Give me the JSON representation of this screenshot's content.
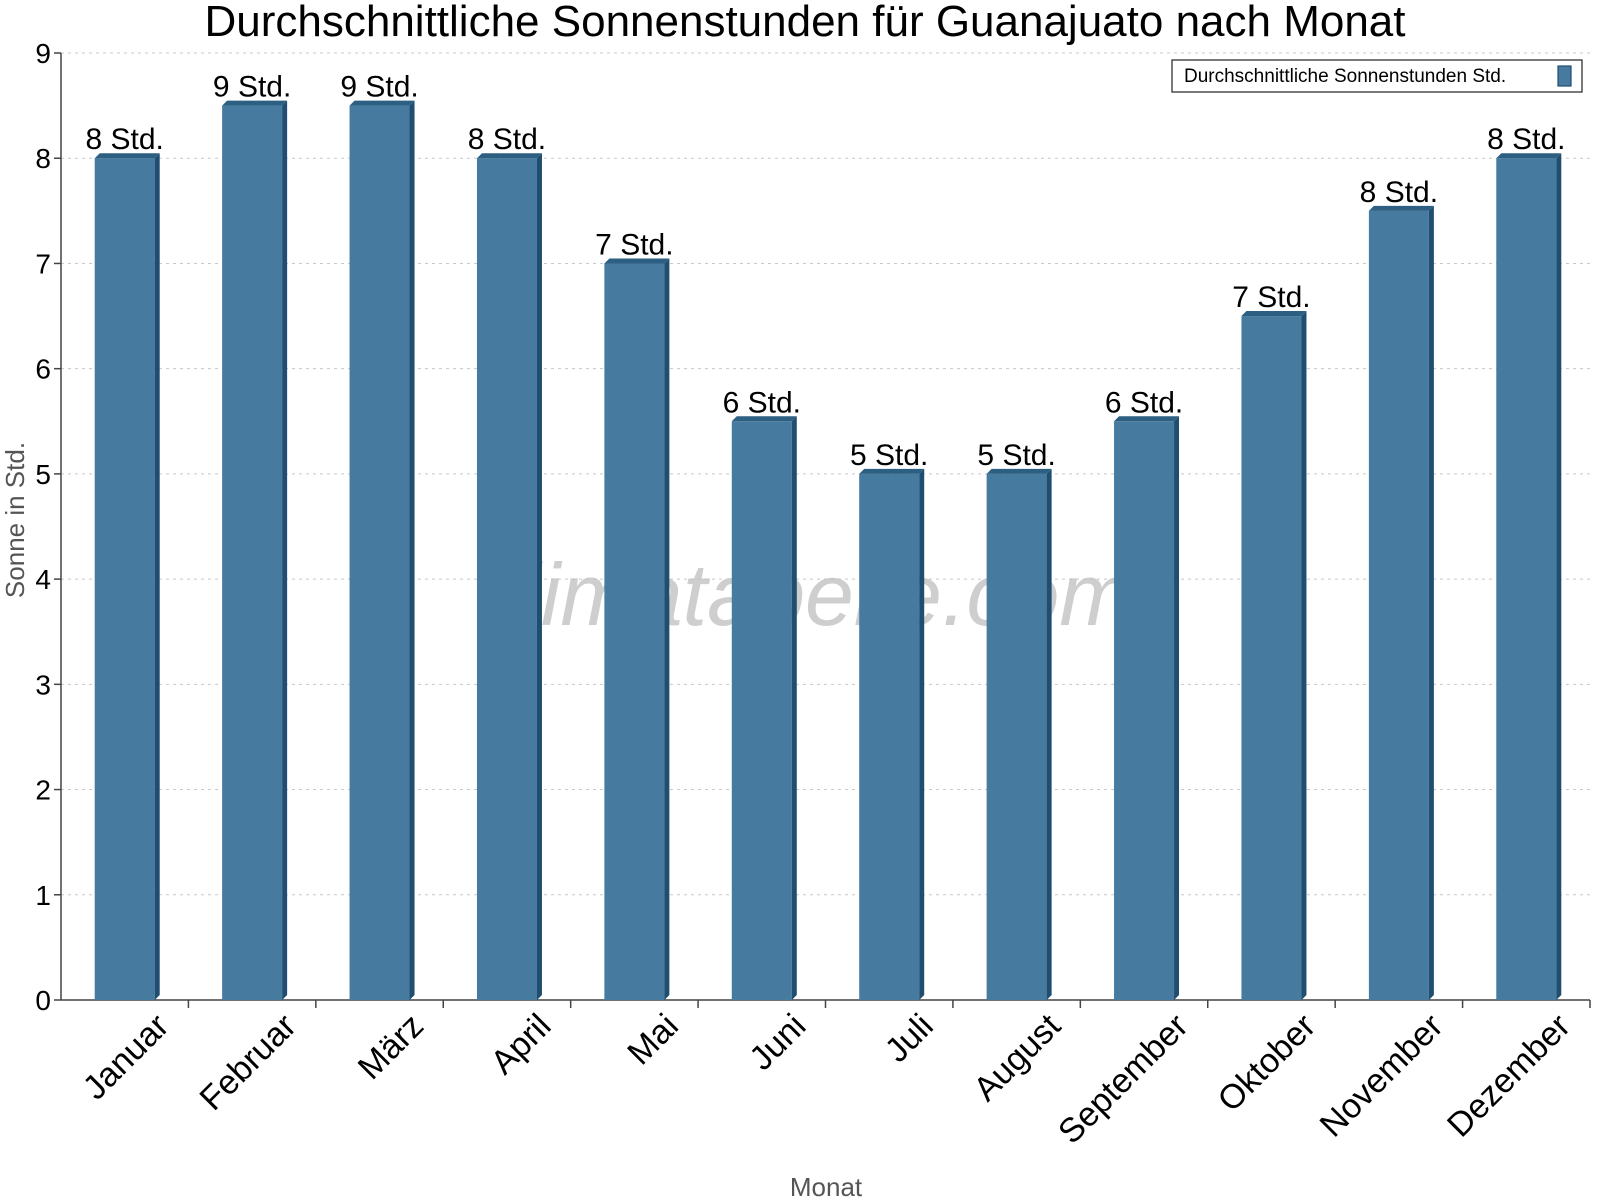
{
  "chart_data": {
    "type": "bar",
    "title": "Durchschnittliche Sonnenstunden für Guanajuato nach Monat",
    "xlabel": "Monat",
    "ylabel": "Sonne in Std.",
    "ylim": [
      0,
      9
    ],
    "yticks": [
      0,
      1,
      2,
      3,
      4,
      5,
      6,
      7,
      8,
      9
    ],
    "grid": true,
    "legend_position": "top-right",
    "categories": [
      "Januar",
      "Februar",
      "März",
      "April",
      "Mai",
      "Juni",
      "Juli",
      "August",
      "September",
      "Oktober",
      "November",
      "Dezember"
    ],
    "series": [
      {
        "name": "Durchschnittliche Sonnenstunden Std.",
        "color": "#467a9e",
        "values": [
          8,
          8.5,
          8.5,
          8,
          7,
          5.5,
          5,
          5,
          5.5,
          6.5,
          7.5,
          8
        ],
        "labels": [
          "8 Std.",
          "9 Std.",
          "9 Std.",
          "8 Std.",
          "7 Std.",
          "6 Std.",
          "5 Std.",
          "5 Std.",
          "6 Std.",
          "7 Std.",
          "8 Std.",
          "8 Std."
        ]
      }
    ]
  },
  "watermark": "klimatabelle.com"
}
